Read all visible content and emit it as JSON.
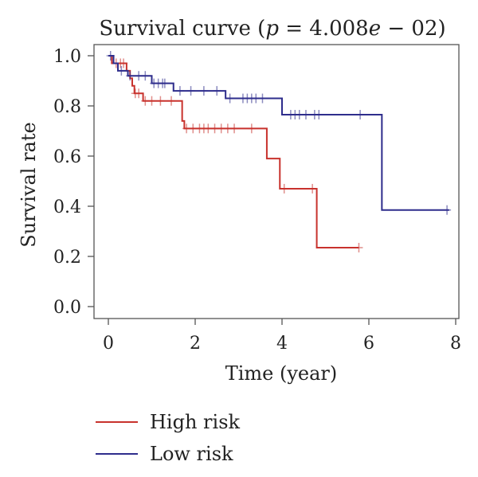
{
  "chart_data": {
    "type": "line",
    "title": {
      "prefix": "Survival curve (",
      "p_symbol": "p",
      "middle": " = 4.008",
      "e_symbol": "e",
      "suffix": " − 02)"
    },
    "xlabel": "Time (year)",
    "ylabel": "Survival rate",
    "xlim": [
      0,
      8
    ],
    "ylim": [
      0,
      1
    ],
    "xticks": [
      0,
      2,
      4,
      6,
      8
    ],
    "yticks": [
      0.0,
      0.2,
      0.4,
      0.6,
      0.8,
      1.0
    ],
    "ytick_labels": [
      "0.0",
      "0.2",
      "0.4",
      "0.6",
      "0.8",
      "1.0"
    ],
    "grid": false,
    "legend_position": "bottom-left",
    "series": [
      {
        "name": "High risk",
        "color": "#c8322d",
        "step": true,
        "points": [
          [
            0,
            1.0
          ],
          [
            0.08,
            0.97
          ],
          [
            0.42,
            0.94
          ],
          [
            0.5,
            0.91
          ],
          [
            0.55,
            0.88
          ],
          [
            0.6,
            0.85
          ],
          [
            0.8,
            0.82
          ],
          [
            1.7,
            0.74
          ],
          [
            1.75,
            0.71
          ],
          [
            3.65,
            0.59
          ],
          [
            3.95,
            0.47
          ],
          [
            4.8,
            0.235
          ],
          [
            5.77,
            0.235
          ]
        ],
        "censors": [
          [
            0.18,
            0.97
          ],
          [
            0.28,
            0.97
          ],
          [
            0.35,
            0.97
          ],
          [
            0.62,
            0.85
          ],
          [
            0.7,
            0.85
          ],
          [
            0.85,
            0.82
          ],
          [
            1.0,
            0.82
          ],
          [
            1.2,
            0.82
          ],
          [
            1.45,
            0.82
          ],
          [
            1.8,
            0.71
          ],
          [
            1.95,
            0.71
          ],
          [
            2.1,
            0.71
          ],
          [
            2.2,
            0.71
          ],
          [
            2.3,
            0.71
          ],
          [
            2.45,
            0.71
          ],
          [
            2.6,
            0.71
          ],
          [
            2.75,
            0.71
          ],
          [
            2.9,
            0.71
          ],
          [
            3.3,
            0.71
          ],
          [
            4.05,
            0.47
          ],
          [
            4.7,
            0.47
          ],
          [
            5.77,
            0.235
          ]
        ]
      },
      {
        "name": "Low risk",
        "color": "#2e2d8c",
        "step": true,
        "points": [
          [
            0,
            1.0
          ],
          [
            0.12,
            0.97
          ],
          [
            0.22,
            0.94
          ],
          [
            0.45,
            0.92
          ],
          [
            1.0,
            0.89
          ],
          [
            1.5,
            0.86
          ],
          [
            2.7,
            0.83
          ],
          [
            4.0,
            0.765
          ],
          [
            6.3,
            0.385
          ],
          [
            7.85,
            0.385
          ]
        ],
        "censors": [
          [
            0.05,
            1.0
          ],
          [
            0.3,
            0.94
          ],
          [
            0.5,
            0.92
          ],
          [
            0.7,
            0.92
          ],
          [
            0.85,
            0.92
          ],
          [
            1.05,
            0.89
          ],
          [
            1.15,
            0.89
          ],
          [
            1.25,
            0.89
          ],
          [
            1.3,
            0.89
          ],
          [
            1.65,
            0.86
          ],
          [
            1.9,
            0.86
          ],
          [
            2.2,
            0.86
          ],
          [
            2.5,
            0.86
          ],
          [
            2.8,
            0.83
          ],
          [
            3.1,
            0.83
          ],
          [
            3.2,
            0.83
          ],
          [
            3.3,
            0.83
          ],
          [
            3.4,
            0.83
          ],
          [
            3.55,
            0.83
          ],
          [
            4.2,
            0.765
          ],
          [
            4.3,
            0.765
          ],
          [
            4.4,
            0.765
          ],
          [
            4.55,
            0.765
          ],
          [
            4.75,
            0.765
          ],
          [
            4.85,
            0.765
          ],
          [
            5.8,
            0.765
          ],
          [
            7.8,
            0.385
          ]
        ]
      }
    ]
  }
}
